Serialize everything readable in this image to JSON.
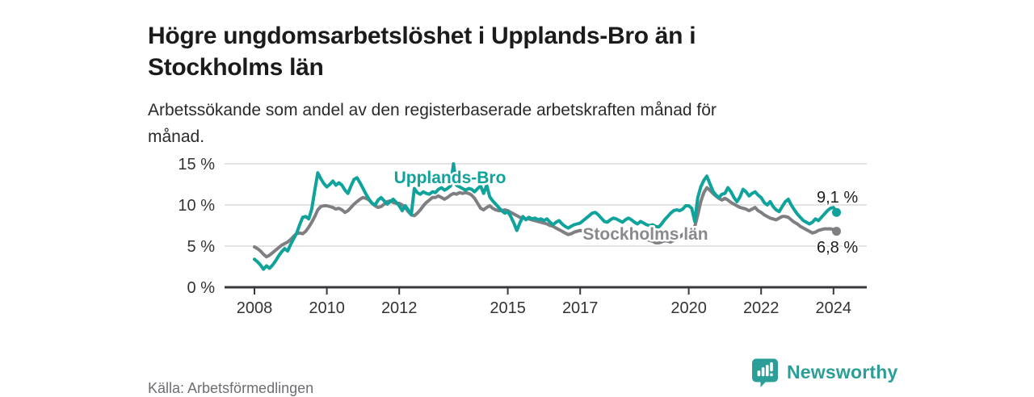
{
  "header": {
    "title": "Högre ungdomsarbetslöshet i Upplands-Bro än i\nStockholms län",
    "subtitle": "Arbetssökande som andel av den registerbaserade arbetskraften månad för\nmånad."
  },
  "footer": {
    "source": "Källa: Arbetsförmedlingen",
    "brand_name": "Newsworthy",
    "brand_icon": "newsworthy-speech-bubble-bar-chart-icon"
  },
  "colors": {
    "accent_teal": "#0fa39b",
    "line_gray": "#7e7e83",
    "brand_teal": "#2b9e97",
    "axis_text": "#333333",
    "gridline": "#dcdcdc",
    "value_label": "#1c1c1c"
  },
  "chart_data": {
    "type": "line",
    "title": "Högre ungdomsarbetslöshet i Upplands-Bro än i Stockholms län",
    "xlabel": "",
    "ylabel": "",
    "x_unit": "monthly",
    "x_range": [
      "2008-01",
      "2024-02"
    ],
    "ylim": [
      0,
      15
    ],
    "grid": "horizontal",
    "legend_position": "inline-labels",
    "ytick_labels": [
      "15 %",
      "10 %",
      "5 %",
      "0 %"
    ],
    "xtick_labels": [
      "2008",
      "2010",
      "2012",
      "2015",
      "2017",
      "2020",
      "2022",
      "2024"
    ],
    "series": [
      {
        "name": "Upplands-Bro",
        "color": "#0fa39b",
        "label_color": "#0fa39b",
        "end_label": "9,1 %",
        "end_value": 9.1,
        "values": [
          3.4,
          3.1,
          2.7,
          2.2,
          2.6,
          2.3,
          2.7,
          3.2,
          3.8,
          4.3,
          4.7,
          4.4,
          5.2,
          5.9,
          6.6,
          7.6,
          8.5,
          8.6,
          8.3,
          9.5,
          11.8,
          13.9,
          13.2,
          12.6,
          12.2,
          12.5,
          12.9,
          12.4,
          12.7,
          12.4,
          11.8,
          11.4,
          12.3,
          13.1,
          13.3,
          12.7,
          12.0,
          11.3,
          10.7,
          10.2,
          10.0,
          10.6,
          10.9,
          10.5,
          10.1,
          10.4,
          10.7,
          10.3,
          9.9,
          9.3,
          9.9,
          9.4,
          8.8,
          12.0,
          11.5,
          11.3,
          11.6,
          11.4,
          11.3,
          11.6,
          11.5,
          11.9,
          12.1,
          11.8,
          12.0,
          12.3,
          15.0,
          12.4,
          12.2,
          12.0,
          11.8,
          12.0,
          11.9,
          11.6,
          12.0,
          12.3,
          11.4,
          12.4,
          11.0,
          10.5,
          10.1,
          9.7,
          9.3,
          9.0,
          9.2,
          8.6,
          7.8,
          6.9,
          7.8,
          8.6,
          8.2,
          8.5,
          8.3,
          8.4,
          8.2,
          8.3,
          8.1,
          8.3,
          7.9,
          7.6,
          7.9,
          8.1,
          7.7,
          7.4,
          7.2,
          7.4,
          7.6,
          7.7,
          7.8,
          8.1,
          8.4,
          8.7,
          9.0,
          9.1,
          8.8,
          8.4,
          8.0,
          7.9,
          8.2,
          8.4,
          8.3,
          8.1,
          7.9,
          8.2,
          8.4,
          8.2,
          7.9,
          7.7,
          8.0,
          7.8,
          7.6,
          7.5,
          7.6,
          7.4,
          7.3,
          7.7,
          8.2,
          8.6,
          9.0,
          9.3,
          9.4,
          9.3,
          9.5,
          9.9,
          9.9,
          9.6,
          8.0,
          10.9,
          12.2,
          13.0,
          13.5,
          12.6,
          11.7,
          11.2,
          10.9,
          11.3,
          11.4,
          12.1,
          11.6,
          10.9,
          10.4,
          11.0,
          11.9,
          11.6,
          11.1,
          11.4,
          11.6,
          11.2,
          10.9,
          10.3,
          10.0,
          10.4,
          9.8,
          9.4,
          9.2,
          9.8,
          10.4,
          10.7,
          10.0,
          9.4,
          8.9,
          8.5,
          8.1,
          7.9,
          7.7,
          7.9,
          8.3,
          8.1,
          8.5,
          8.9,
          9.3,
          9.6,
          9.7,
          9.1
        ]
      },
      {
        "name": "Stockholms län",
        "color": "#7e7e83",
        "label_color": "#89898e",
        "end_label": "6,8 %",
        "end_value": 6.8,
        "values": [
          4.9,
          4.7,
          4.4,
          4.0,
          3.7,
          3.9,
          4.2,
          4.5,
          4.8,
          5.1,
          5.3,
          5.5,
          5.8,
          6.2,
          6.5,
          6.6,
          6.5,
          6.8,
          7.3,
          7.9,
          8.6,
          9.4,
          9.8,
          9.9,
          9.9,
          9.8,
          9.7,
          9.5,
          9.6,
          9.4,
          9.1,
          9.3,
          9.7,
          10.1,
          10.4,
          10.7,
          10.9,
          10.8,
          10.6,
          10.2,
          9.9,
          9.7,
          9.8,
          10.1,
          10.4,
          10.5,
          10.3,
          10.2,
          10.2,
          10.0,
          9.7,
          9.2,
          8.8,
          8.7,
          9.0,
          9.4,
          9.9,
          10.3,
          10.6,
          10.9,
          10.9,
          11.1,
          10.9,
          10.7,
          10.9,
          11.2,
          11.4,
          11.3,
          11.5,
          11.4,
          11.5,
          11.4,
          11.2,
          10.8,
          10.2,
          9.6,
          9.4,
          9.7,
          9.9,
          9.6,
          9.4,
          9.3,
          9.3,
          9.4,
          9.3,
          9.1,
          8.9,
          8.7,
          8.5,
          8.4,
          8.3,
          8.3,
          8.2,
          8.1,
          8.0,
          7.9,
          7.8,
          7.7,
          7.5,
          7.4,
          7.2,
          7.0,
          6.8,
          6.6,
          6.4,
          6.5,
          6.7,
          6.8,
          6.9,
          6.8,
          6.7,
          6.8,
          6.9,
          6.8,
          6.7,
          6.6,
          6.6,
          6.7,
          6.6,
          6.5,
          6.4,
          6.3,
          6.2,
          6.3,
          6.4,
          6.3,
          6.2,
          6.1,
          6.0,
          5.9,
          5.8,
          5.7,
          5.6,
          5.4,
          5.4,
          5.5,
          5.7,
          5.6,
          5.5,
          5.7,
          5.9,
          6.1,
          6.4,
          6.8,
          7.1,
          7.0,
          7.4,
          8.8,
          10.4,
          11.5,
          12.1,
          11.8,
          11.4,
          11.1,
          10.8,
          10.6,
          10.8,
          10.6,
          10.3,
          10.1,
          9.9,
          9.7,
          9.6,
          9.5,
          9.3,
          9.5,
          9.7,
          9.3,
          9.1,
          8.8,
          8.6,
          8.4,
          8.3,
          8.2,
          8.4,
          8.6,
          8.6,
          8.5,
          8.2,
          7.9,
          7.7,
          7.4,
          7.2,
          7.0,
          6.8,
          6.6,
          6.7,
          6.9,
          7.0,
          7.1,
          7.1,
          7.1,
          7.0,
          6.8
        ]
      }
    ]
  }
}
